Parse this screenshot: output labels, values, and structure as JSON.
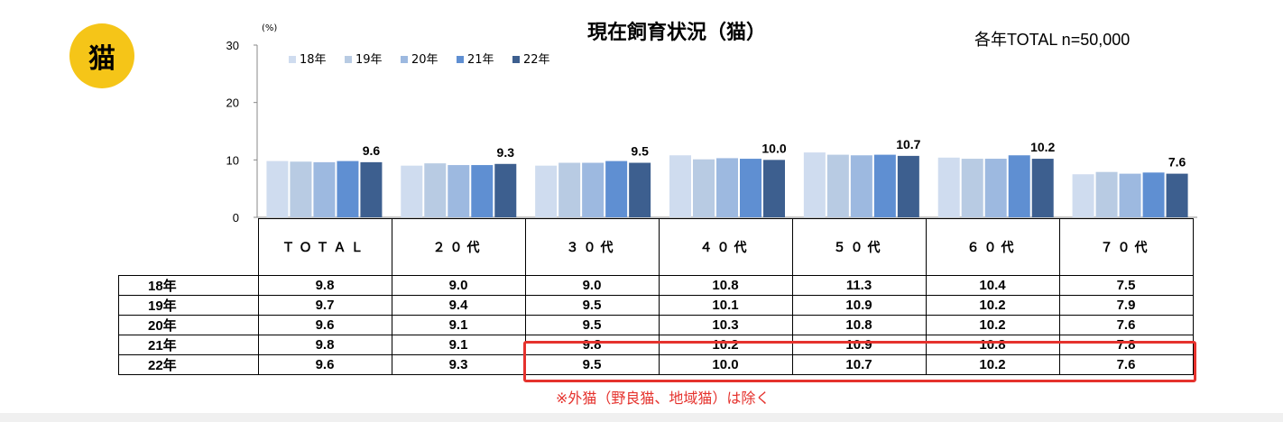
{
  "badge": {
    "label": "猫"
  },
  "header": {
    "title": "現在飼育状況（猫）",
    "sample": "各年TOTAL n=50,000",
    "unit": "(%)"
  },
  "colors": {
    "badge": "#f5c518",
    "highlight": "#e5322d"
  },
  "chart_data": {
    "type": "bar",
    "title": "現在飼育状況（猫）",
    "ylabel": "(%)",
    "ylim": [
      0,
      30
    ],
    "yticks": [
      0,
      10,
      20,
      30
    ],
    "grid": false,
    "legend": "top-left",
    "categories": [
      "ＴＯＴＡＬ",
      "２０代",
      "３０代",
      "４０代",
      "５０代",
      "６０代",
      "７０代"
    ],
    "series": [
      {
        "name": "18年",
        "color": "#cfdcef",
        "values": [
          9.8,
          9.0,
          9.0,
          10.8,
          11.3,
          10.4,
          7.5
        ]
      },
      {
        "name": "19年",
        "color": "#b8cbe3",
        "values": [
          9.7,
          9.4,
          9.5,
          10.1,
          10.9,
          10.2,
          7.9
        ]
      },
      {
        "name": "20年",
        "color": "#9db9e0",
        "values": [
          9.6,
          9.1,
          9.5,
          10.3,
          10.8,
          10.2,
          7.6
        ]
      },
      {
        "name": "21年",
        "color": "#5f8fd2",
        "values": [
          9.8,
          9.1,
          9.8,
          10.2,
          10.9,
          10.8,
          7.8
        ]
      },
      {
        "name": "22年",
        "color": "#3d5f8f",
        "values": [
          9.6,
          9.3,
          9.5,
          10.0,
          10.7,
          10.2,
          7.6
        ]
      }
    ],
    "data_labels": [
      "9.6",
      "9.3",
      "9.5",
      "10.0",
      "10.7",
      "10.2",
      "7.6"
    ]
  },
  "table": {
    "headers": [
      "ＴＯＴＡＬ",
      "２０代",
      "３０代",
      "４０代",
      "５０代",
      "６０代",
      "７０代"
    ],
    "rows": [
      {
        "label": "18年",
        "values": [
          "9.8",
          "9.0",
          "9.0",
          "10.8",
          "11.3",
          "10.4",
          "7.5"
        ]
      },
      {
        "label": "19年",
        "values": [
          "9.7",
          "9.4",
          "9.5",
          "10.1",
          "10.9",
          "10.2",
          "7.9"
        ]
      },
      {
        "label": "20年",
        "values": [
          "9.6",
          "9.1",
          "9.5",
          "10.3",
          "10.8",
          "10.2",
          "7.6"
        ]
      },
      {
        "label": "21年",
        "values": [
          "9.8",
          "9.1",
          "9.8",
          "10.2",
          "10.9",
          "10.8",
          "7.8"
        ]
      },
      {
        "label": "22年",
        "values": [
          "9.6",
          "9.3",
          "9.5",
          "10.0",
          "10.7",
          "10.2",
          "7.6"
        ]
      }
    ]
  },
  "note": "※外猫（野良猫、地域猫）は除く"
}
